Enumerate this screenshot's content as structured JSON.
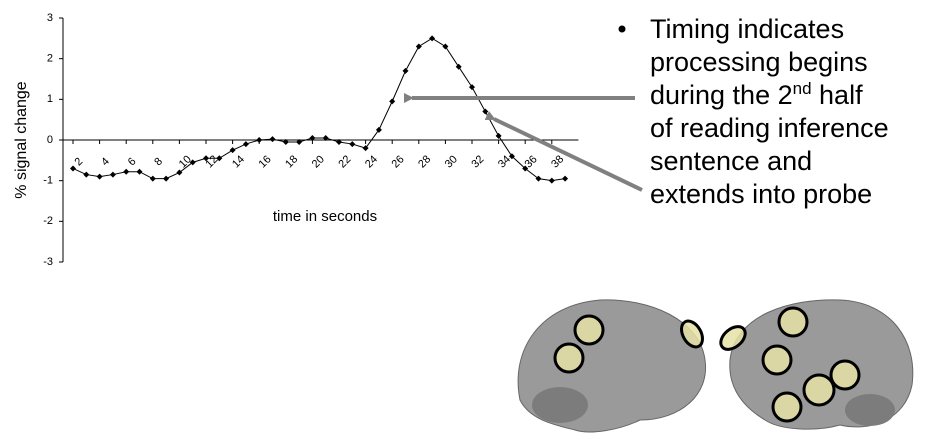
{
  "chart_data": {
    "type": "line",
    "y_label": "% signal change",
    "x_label": "time in seconds",
    "x": [
      2,
      3,
      4,
      5,
      6,
      7,
      8,
      9,
      10,
      11,
      12,
      13,
      14,
      15,
      16,
      17,
      18,
      19,
      20,
      21,
      22,
      23,
      24,
      25,
      26,
      27,
      28,
      29,
      30,
      31,
      32,
      33,
      34,
      35,
      36,
      37,
      38,
      39
    ],
    "series": [
      {
        "name": "signal",
        "color": "#000000",
        "values": [
          -0.7,
          -0.85,
          -0.9,
          -0.85,
          -0.78,
          -0.78,
          -0.95,
          -0.95,
          -0.8,
          -0.55,
          -0.45,
          -0.45,
          -0.25,
          -0.1,
          0,
          0.02,
          -0.05,
          -0.05,
          0.05,
          0.05,
          -0.05,
          -0.1,
          -0.2,
          0.25,
          0.95,
          1.7,
          2.3,
          2.5,
          2.3,
          1.8,
          1.3,
          0.7,
          0.1,
          -0.4,
          -0.7,
          -0.95,
          -1.0,
          -0.95
        ]
      }
    ],
    "xlim": [
      1,
      40
    ],
    "xticks": [
      2,
      4,
      6,
      8,
      10,
      12,
      14,
      16,
      18,
      20,
      22,
      24,
      26,
      28,
      30,
      32,
      34,
      36,
      38
    ],
    "ylim": [
      -3,
      3
    ],
    "yticks": [
      -3,
      -2,
      -1,
      0,
      1,
      2,
      3
    ]
  },
  "bullet": {
    "lines": [
      "Timing indicates",
      "processing begins",
      "during the 2",
      "of reading inference",
      "sentence and",
      "extends into probe"
    ],
    "superscript": "nd",
    "after_superscript": " half"
  }
}
